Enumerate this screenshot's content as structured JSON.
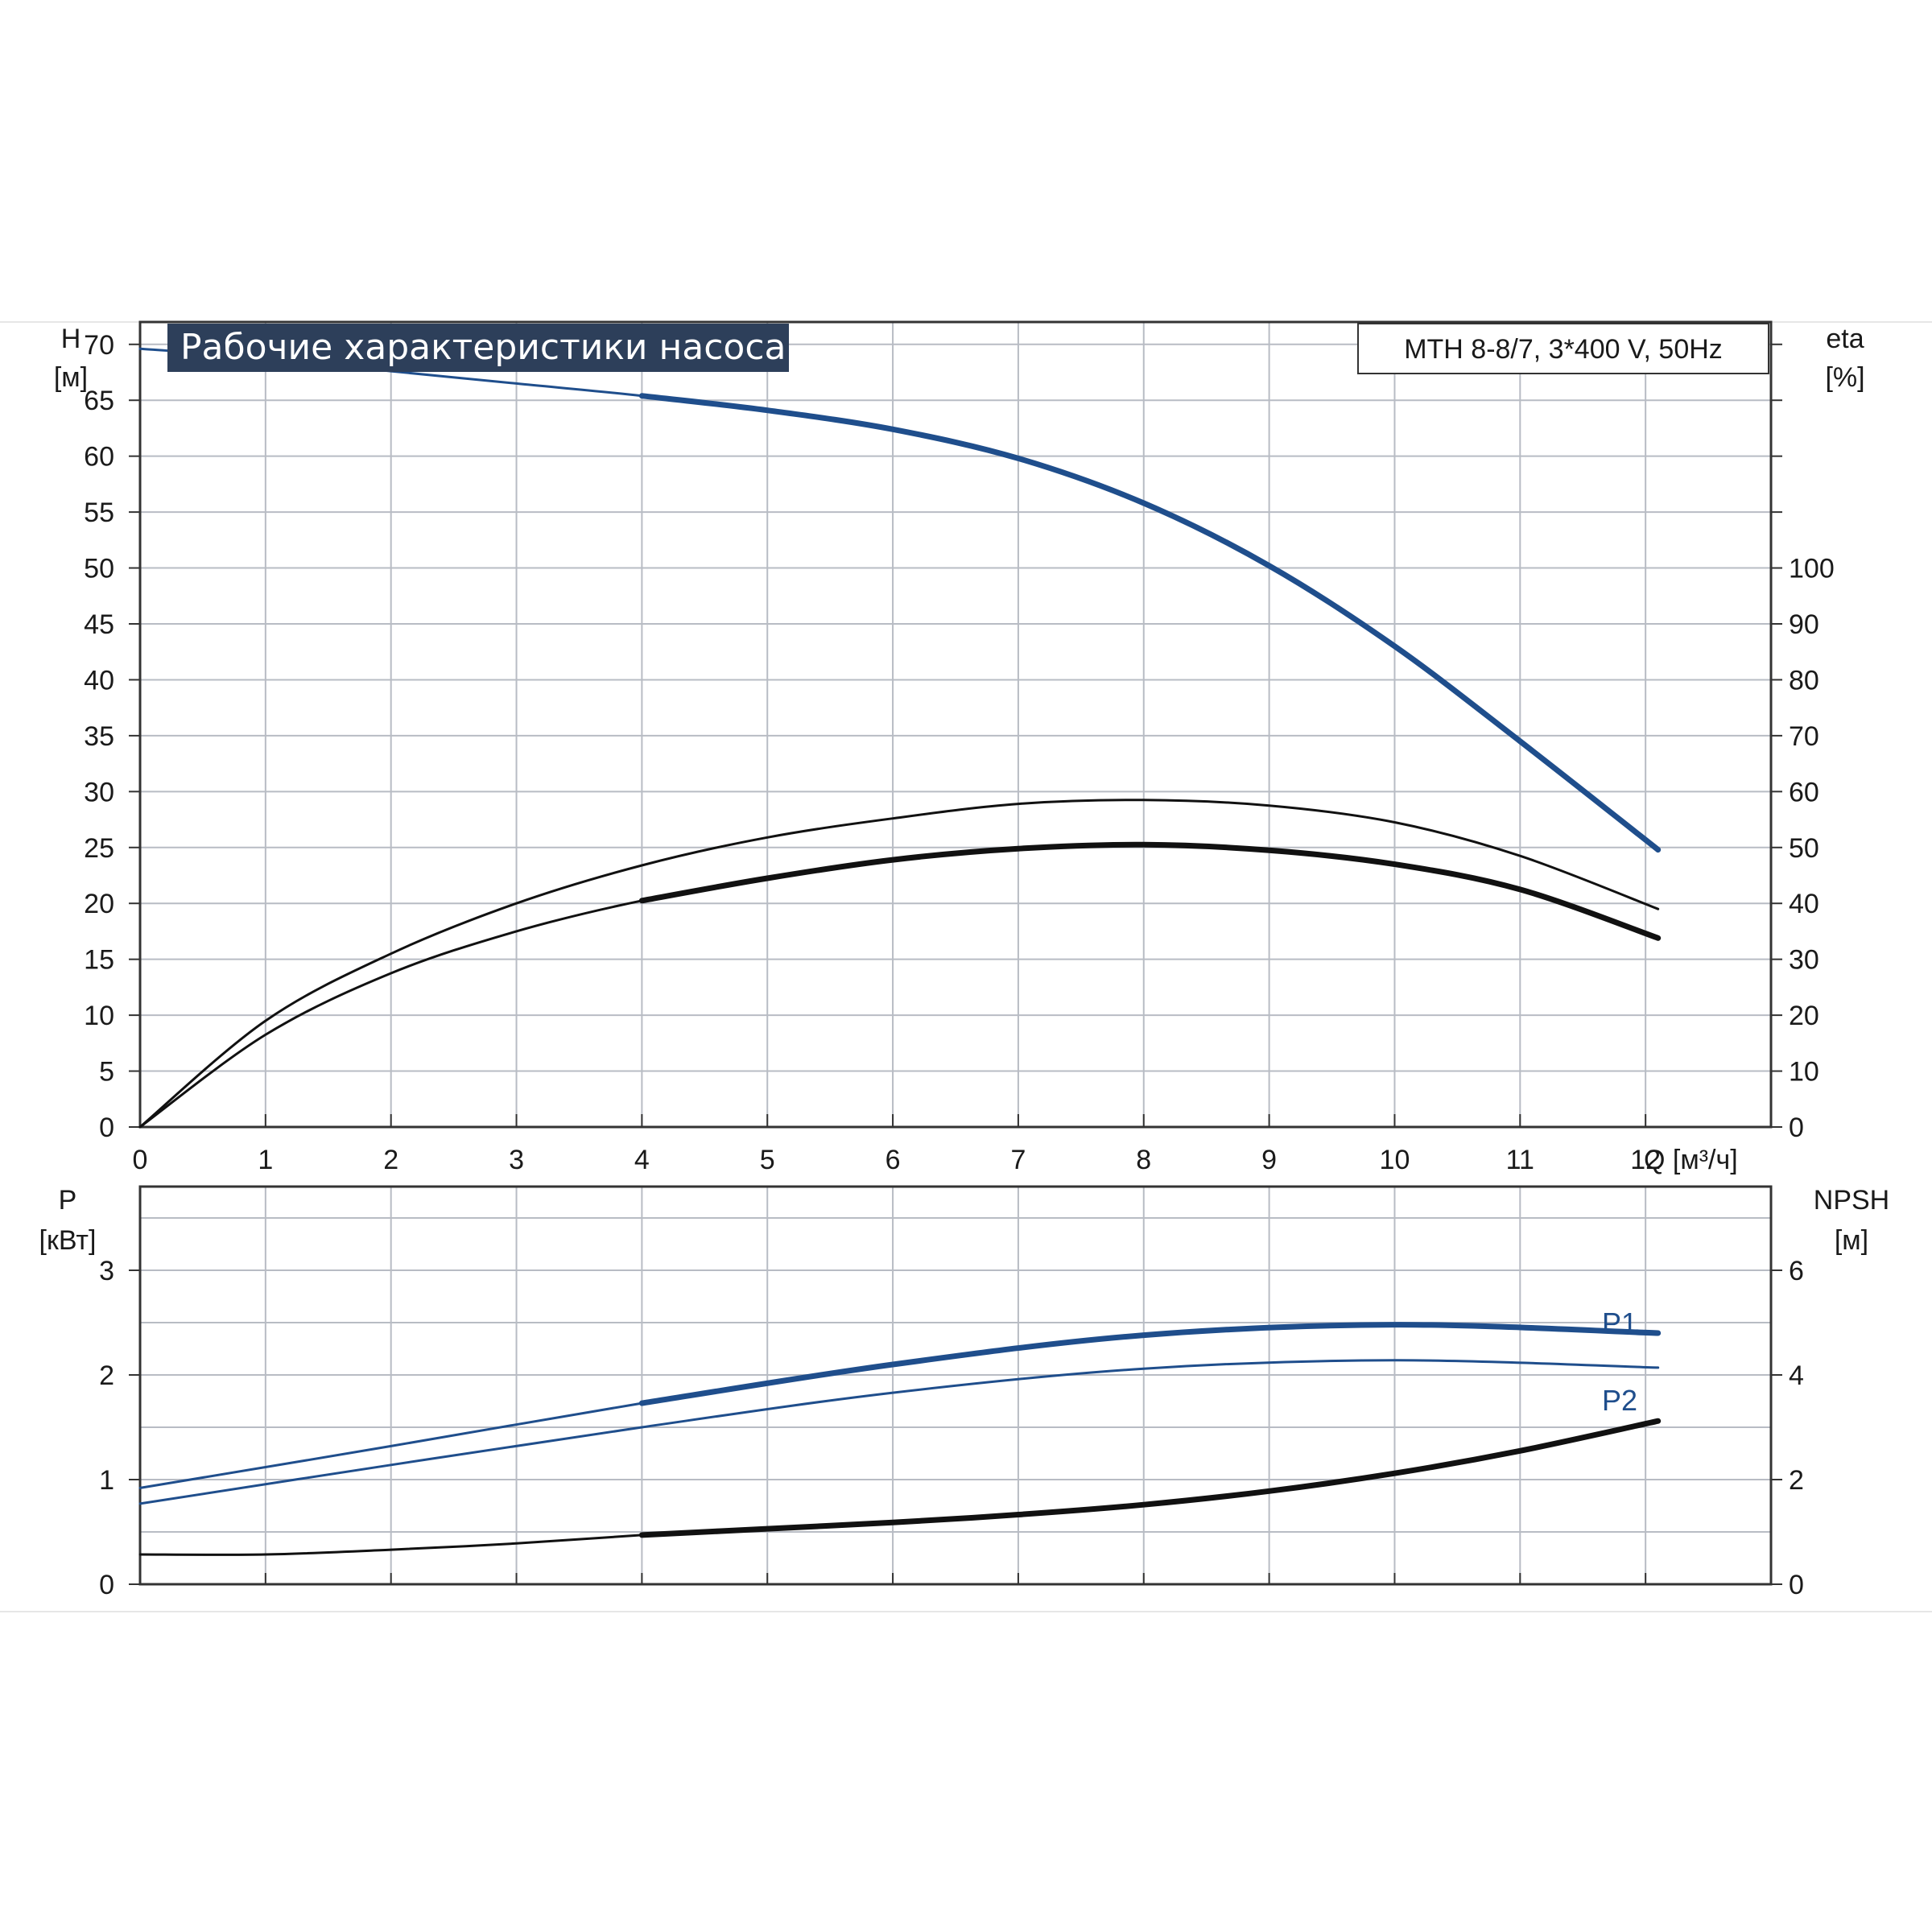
{
  "header": {
    "title": "Рабочие характеристики насоса",
    "model": "MTH 8-8/7, 3*400 V, 50Hz"
  },
  "colors": {
    "blue": "#1f4e8c",
    "black": "#111111",
    "grid": "#b8bcc4",
    "title_bg": "#2d3f5a"
  },
  "chart_data": [
    {
      "type": "line",
      "name": "upper-panel",
      "x_unit": "Q [м³/ч]",
      "xlim": [
        0,
        13
      ],
      "x_ticks": [
        "0",
        "1",
        "2",
        "3",
        "4",
        "5",
        "6",
        "7",
        "8",
        "9",
        "10",
        "11",
        "12"
      ],
      "x_axis_label": "Q [м³/ч]",
      "y_left": {
        "label_top": "H",
        "label_unit": "[м]",
        "ylim": [
          0,
          72
        ],
        "ticks": [
          "0",
          "5",
          "10",
          "15",
          "20",
          "25",
          "30",
          "35",
          "40",
          "45",
          "50",
          "55",
          "60",
          "65",
          "70"
        ]
      },
      "y_right": {
        "label_top": "eta",
        "label_unit": "[%]",
        "ylim": [
          0,
          144
        ],
        "ticks": [
          "0",
          "10",
          "20",
          "30",
          "40",
          "50",
          "60",
          "70",
          "80",
          "90",
          "100"
        ]
      },
      "series": [
        {
          "axis": "left",
          "color": "blue",
          "thick_from": 4,
          "points": [
            [
              0,
              69.6
            ],
            [
              1,
              68.8
            ],
            [
              2,
              67.6
            ],
            [
              3,
              66.5
            ],
            [
              4,
              65.4
            ],
            [
              5,
              64.1
            ],
            [
              6,
              62.4
            ],
            [
              7,
              59.8
            ],
            [
              8,
              55.8
            ],
            [
              9,
              50.2
            ],
            [
              10,
              43
            ],
            [
              11,
              34.5
            ],
            [
              12.1,
              24.8
            ]
          ]
        },
        {
          "axis": "right",
          "color": "black",
          "thick_from": 99,
          "points": [
            [
              0,
              0
            ],
            [
              1,
              19
            ],
            [
              2,
              31
            ],
            [
              3,
              40
            ],
            [
              4,
              46.8
            ],
            [
              5,
              51.8
            ],
            [
              6,
              55.2
            ],
            [
              7,
              57.8
            ],
            [
              8,
              58.5
            ],
            [
              9,
              57.5
            ],
            [
              10,
              54.5
            ],
            [
              11,
              48.5
            ],
            [
              12.1,
              39
            ]
          ]
        },
        {
          "axis": "right",
          "color": "black",
          "thick_from": 4,
          "points": [
            [
              0,
              0
            ],
            [
              1,
              16.5
            ],
            [
              2,
              27.5
            ],
            [
              3,
              35
            ],
            [
              4,
              40.5
            ],
            [
              5,
              44.5
            ],
            [
              6,
              47.8
            ],
            [
              7,
              49.8
            ],
            [
              8,
              50.5
            ],
            [
              9,
              49.5
            ],
            [
              10,
              47
            ],
            [
              11,
              42.5
            ],
            [
              12.1,
              33.8
            ]
          ]
        }
      ]
    },
    {
      "type": "line",
      "name": "lower-panel",
      "xlim": [
        0,
        13
      ],
      "y_left": {
        "label_top": "P",
        "label_unit": "[кВт]",
        "ylim": [
          0,
          3.8
        ],
        "ticks": [
          "0",
          "1",
          "2",
          "3"
        ]
      },
      "y_right": {
        "label_top": "NPSH",
        "label_unit": "[м]",
        "ylim": [
          0,
          7.6
        ],
        "ticks": [
          "0",
          "2",
          "4",
          "6"
        ]
      },
      "series": [
        {
          "name": "P1",
          "axis": "left",
          "color": "blue",
          "thick_from": 4,
          "points": [
            [
              0,
              0.92
            ],
            [
              2,
              1.32
            ],
            [
              4,
              1.73
            ],
            [
              6,
              2.1
            ],
            [
              8,
              2.38
            ],
            [
              10,
              2.48
            ],
            [
              12.1,
              2.4
            ]
          ]
        },
        {
          "name": "P2",
          "axis": "left",
          "color": "blue",
          "thick_from": 99,
          "points": [
            [
              0,
              0.77
            ],
            [
              2,
              1.14
            ],
            [
              4,
              1.5
            ],
            [
              6,
              1.83
            ],
            [
              8,
              2.06
            ],
            [
              10,
              2.14
            ],
            [
              12.1,
              2.07
            ]
          ]
        },
        {
          "axis": "right",
          "color": "black",
          "thick_from": 4,
          "points": [
            [
              0,
              0.57
            ],
            [
              1,
              0.57
            ],
            [
              2,
              0.66
            ],
            [
              3,
              0.78
            ],
            [
              4,
              0.94
            ],
            [
              5,
              1.06
            ],
            [
              6,
              1.18
            ],
            [
              7,
              1.33
            ],
            [
              8,
              1.52
            ],
            [
              9,
              1.78
            ],
            [
              10,
              2.12
            ],
            [
              11,
              2.55
            ],
            [
              12.1,
              3.12
            ]
          ]
        }
      ]
    }
  ]
}
